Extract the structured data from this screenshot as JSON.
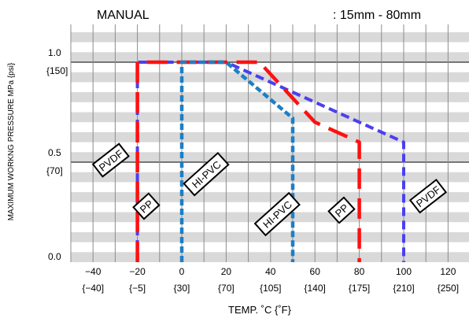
{
  "chart_data": {
    "type": "line",
    "title": "MANUAL",
    "subtitle": ": 15mm - 80mm",
    "xlabel": "TEMP. ˚C {˚F}",
    "ylabel": "MAXIMUM WORKNG PRESSURE   MPa {psi}",
    "xlim": [
      -50,
      130
    ],
    "ylim": [
      0,
      1.2
    ],
    "x_ticks": [
      {
        "c": "−40",
        "f": "{−40]"
      },
      {
        "c": "−20",
        "f": "{−5]"
      },
      {
        "c": "0",
        "f": "{30]"
      },
      {
        "c": "20",
        "f": "{70]"
      },
      {
        "c": "40",
        "f": "{105]"
      },
      {
        "c": "60",
        "f": "{140]"
      },
      {
        "c": "80",
        "f": "{175]"
      },
      {
        "c": "100",
        "f": "{210]"
      },
      {
        "c": "120",
        "f": "{250]"
      }
    ],
    "x_tick_values": [
      -40,
      -20,
      0,
      20,
      40,
      60,
      80,
      100,
      120
    ],
    "y_ticks": [
      {
        "v": 1.0,
        "mpa": "1.0",
        "psi": "{150]"
      },
      {
        "v": 0.5,
        "mpa": "0.5",
        "psi": "{70]"
      },
      {
        "v": 0.0,
        "mpa": "0.0",
        "psi": ""
      }
    ],
    "series": [
      {
        "name": "PVDF",
        "color": "#4b3ff0",
        "dash": "11 6",
        "width": 4,
        "x": [
          -20,
          -20,
          20,
          100,
          100
        ],
        "y": [
          0,
          1.0,
          1.0,
          0.6,
          0
        ]
      },
      {
        "name": "PP",
        "color": "#ff1010",
        "dash": "26 12",
        "width": 4.5,
        "x": [
          -20,
          -20,
          35,
          60,
          80,
          80
        ],
        "y": [
          0,
          1.0,
          1.0,
          0.7,
          0.6,
          0
        ]
      },
      {
        "name": "HI-PVC",
        "color": "#1c7fc6",
        "dash": "8 4",
        "width": 4.5,
        "x": [
          0,
          0,
          20,
          50,
          50
        ],
        "y": [
          0,
          1.0,
          1.0,
          0.72,
          0
        ]
      }
    ],
    "annotations": [
      {
        "text": "PVDF",
        "x": -32,
        "y": 0.51,
        "angle": -38
      },
      {
        "text": "PP",
        "x": -16,
        "y": 0.28,
        "angle": -42
      },
      {
        "text": "HI-PVC",
        "x": 11,
        "y": 0.44,
        "angle": -42
      },
      {
        "text": "HI-PVC",
        "x": 43,
        "y": 0.24,
        "angle": -42
      },
      {
        "text": "PP",
        "x": 72,
        "y": 0.26,
        "angle": -42
      },
      {
        "text": "PVDF",
        "x": 111,
        "y": 0.33,
        "angle": -38
      }
    ],
    "grid": true,
    "band_color": "#d9d9d9",
    "legend": "none"
  }
}
